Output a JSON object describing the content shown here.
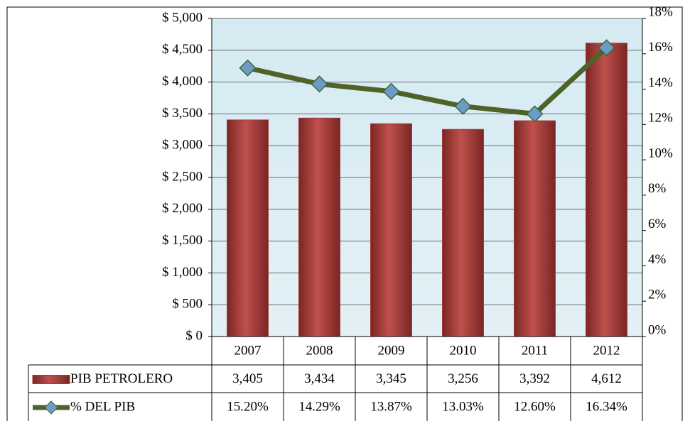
{
  "chart_data": {
    "type": "bar-line",
    "categories": [
      "2007",
      "2008",
      "2009",
      "2010",
      "2011",
      "2012"
    ],
    "series": [
      {
        "name": "PIB PETROLERO",
        "type": "bar",
        "color": "#a33c3a",
        "values": [
          3405,
          3434,
          3345,
          3256,
          3392,
          4612
        ],
        "value_labels": [
          "3,405",
          "3,434",
          "3,345",
          "3,256",
          "3,392",
          "4,612"
        ]
      },
      {
        "name": "% DEL PIB",
        "type": "line",
        "axis": "y2",
        "color": "#4f6228",
        "values": [
          15.2,
          14.29,
          13.87,
          13.03,
          12.6,
          16.34
        ],
        "value_labels": [
          "15.20%",
          "14.29%",
          "13.87%",
          "13.03%",
          "12.60%",
          "16.34%"
        ]
      }
    ],
    "ylim": [
      0,
      5000
    ],
    "yticks": [
      {
        "value": 0,
        "label": "$ 0"
      },
      {
        "value": 500,
        "label": "$ 500"
      },
      {
        "value": 1000,
        "label": "$ 1,000"
      },
      {
        "value": 1500,
        "label": "$ 1,500"
      },
      {
        "value": 2000,
        "label": "$ 2,000"
      },
      {
        "value": 2500,
        "label": "$ 2,500"
      },
      {
        "value": 3000,
        "label": "$ 3,000"
      },
      {
        "value": 3500,
        "label": "$ 3,500"
      },
      {
        "value": 4000,
        "label": "$ 4,000"
      },
      {
        "value": 4500,
        "label": "$ 4,500"
      },
      {
        "value": 5000,
        "label": "$ 5,000"
      }
    ],
    "y2lim": [
      0,
      18
    ],
    "y2ticks": [
      {
        "value": 0,
        "label": "0%"
      },
      {
        "value": 2,
        "label": "2%"
      },
      {
        "value": 4,
        "label": "4%"
      },
      {
        "value": 6,
        "label": "6%"
      },
      {
        "value": 8,
        "label": "8%"
      },
      {
        "value": 10,
        "label": "10%"
      },
      {
        "value": 12,
        "label": "12%"
      },
      {
        "value": 14,
        "label": "14%"
      },
      {
        "value": 16,
        "label": "16%"
      },
      {
        "value": 18,
        "label": "18%"
      }
    ],
    "grid": true,
    "data_table": true
  }
}
